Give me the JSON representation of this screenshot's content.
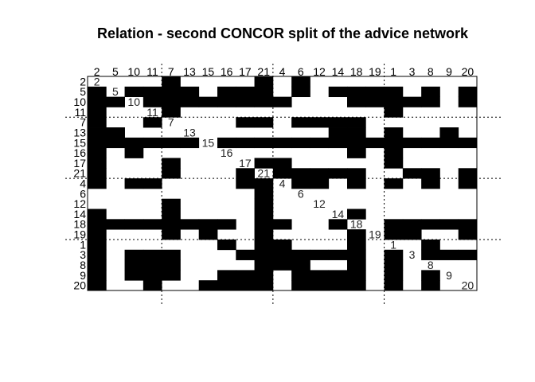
{
  "chart_data": {
    "type": "heatmap",
    "title": "Relation -  second CONCOR split of the advice network",
    "col_labels": [
      "2",
      "5",
      "10",
      "11",
      "7",
      "13",
      "15",
      "16",
      "17",
      "21",
      "4",
      "6",
      "12",
      "14",
      "18",
      "19",
      "1",
      "3",
      "8",
      "9",
      "20"
    ],
    "row_labels": [
      "2",
      "5",
      "10",
      "11",
      "7",
      "13",
      "15",
      "16",
      "17",
      "21",
      "4",
      "6",
      "12",
      "14",
      "18",
      "19",
      "1",
      "3",
      "8",
      "9",
      "20"
    ],
    "diagonal_labels": [
      "2",
      "5",
      "10",
      "11",
      "7",
      "13",
      "15",
      "16",
      "17",
      "21",
      "4",
      "6",
      "12",
      "14",
      "18",
      "19",
      "1",
      "3",
      "8",
      "9",
      "20"
    ],
    "cell_color": "#000000",
    "partition_after_rows": [
      4,
      10,
      16
    ],
    "partition_after_cols": [
      4,
      10,
      16
    ],
    "matrix": [
      [
        0,
        0,
        0,
        0,
        1,
        0,
        0,
        0,
        0,
        1,
        0,
        1,
        0,
        0,
        0,
        0,
        0,
        0,
        0,
        0,
        0
      ],
      [
        1,
        0,
        1,
        1,
        1,
        1,
        0,
        1,
        1,
        1,
        0,
        1,
        0,
        1,
        1,
        1,
        1,
        0,
        1,
        0,
        1
      ],
      [
        1,
        1,
        0,
        1,
        1,
        1,
        1,
        1,
        1,
        1,
        1,
        0,
        0,
        0,
        1,
        1,
        1,
        1,
        1,
        0,
        1
      ],
      [
        1,
        0,
        0,
        0,
        1,
        0,
        0,
        0,
        0,
        0,
        0,
        0,
        0,
        0,
        0,
        0,
        1,
        0,
        0,
        0,
        0
      ],
      [
        1,
        0,
        0,
        1,
        0,
        0,
        0,
        0,
        1,
        1,
        0,
        1,
        1,
        1,
        1,
        0,
        0,
        0,
        0,
        0,
        0
      ],
      [
        1,
        1,
        0,
        0,
        0,
        0,
        0,
        0,
        0,
        0,
        0,
        0,
        0,
        1,
        1,
        0,
        1,
        0,
        0,
        1,
        0
      ],
      [
        1,
        1,
        1,
        1,
        1,
        1,
        0,
        1,
        1,
        1,
        1,
        1,
        1,
        1,
        1,
        1,
        1,
        1,
        1,
        1,
        1
      ],
      [
        1,
        0,
        1,
        0,
        0,
        0,
        0,
        0,
        0,
        0,
        0,
        0,
        0,
        0,
        1,
        0,
        1,
        0,
        0,
        0,
        0
      ],
      [
        1,
        0,
        0,
        0,
        1,
        0,
        0,
        0,
        0,
        1,
        1,
        0,
        0,
        0,
        0,
        0,
        1,
        0,
        0,
        0,
        0
      ],
      [
        1,
        0,
        0,
        0,
        1,
        0,
        0,
        0,
        1,
        0,
        1,
        1,
        1,
        1,
        1,
        0,
        0,
        1,
        1,
        0,
        1
      ],
      [
        1,
        0,
        1,
        1,
        0,
        0,
        0,
        0,
        1,
        1,
        0,
        1,
        1,
        0,
        1,
        0,
        1,
        0,
        1,
        0,
        1
      ],
      [
        0,
        0,
        0,
        0,
        0,
        0,
        0,
        0,
        0,
        1,
        0,
        0,
        0,
        0,
        0,
        0,
        0,
        0,
        0,
        0,
        0
      ],
      [
        0,
        0,
        0,
        0,
        1,
        0,
        0,
        0,
        0,
        1,
        0,
        0,
        0,
        0,
        0,
        0,
        0,
        0,
        0,
        0,
        0
      ],
      [
        1,
        0,
        0,
        0,
        1,
        0,
        0,
        0,
        0,
        1,
        0,
        0,
        0,
        0,
        1,
        0,
        0,
        0,
        0,
        0,
        0
      ],
      [
        1,
        1,
        1,
        1,
        1,
        1,
        1,
        1,
        0,
        1,
        1,
        0,
        0,
        1,
        0,
        0,
        1,
        1,
        1,
        1,
        1
      ],
      [
        1,
        0,
        0,
        0,
        1,
        0,
        1,
        0,
        0,
        1,
        0,
        0,
        0,
        0,
        1,
        0,
        1,
        1,
        0,
        0,
        1
      ],
      [
        1,
        0,
        0,
        0,
        0,
        0,
        0,
        1,
        0,
        1,
        1,
        0,
        0,
        0,
        1,
        0,
        0,
        0,
        1,
        0,
        0
      ],
      [
        1,
        0,
        1,
        1,
        1,
        0,
        0,
        0,
        1,
        1,
        1,
        1,
        1,
        1,
        1,
        0,
        1,
        0,
        1,
        1,
        1
      ],
      [
        1,
        0,
        1,
        1,
        1,
        0,
        0,
        0,
        0,
        1,
        1,
        1,
        0,
        0,
        1,
        0,
        1,
        0,
        0,
        0,
        0
      ],
      [
        1,
        0,
        1,
        1,
        1,
        0,
        0,
        1,
        1,
        1,
        0,
        1,
        1,
        1,
        1,
        0,
        1,
        0,
        1,
        0,
        0
      ],
      [
        1,
        0,
        0,
        1,
        0,
        0,
        1,
        1,
        1,
        1,
        0,
        1,
        1,
        1,
        1,
        0,
        1,
        0,
        1,
        0,
        0
      ]
    ]
  }
}
